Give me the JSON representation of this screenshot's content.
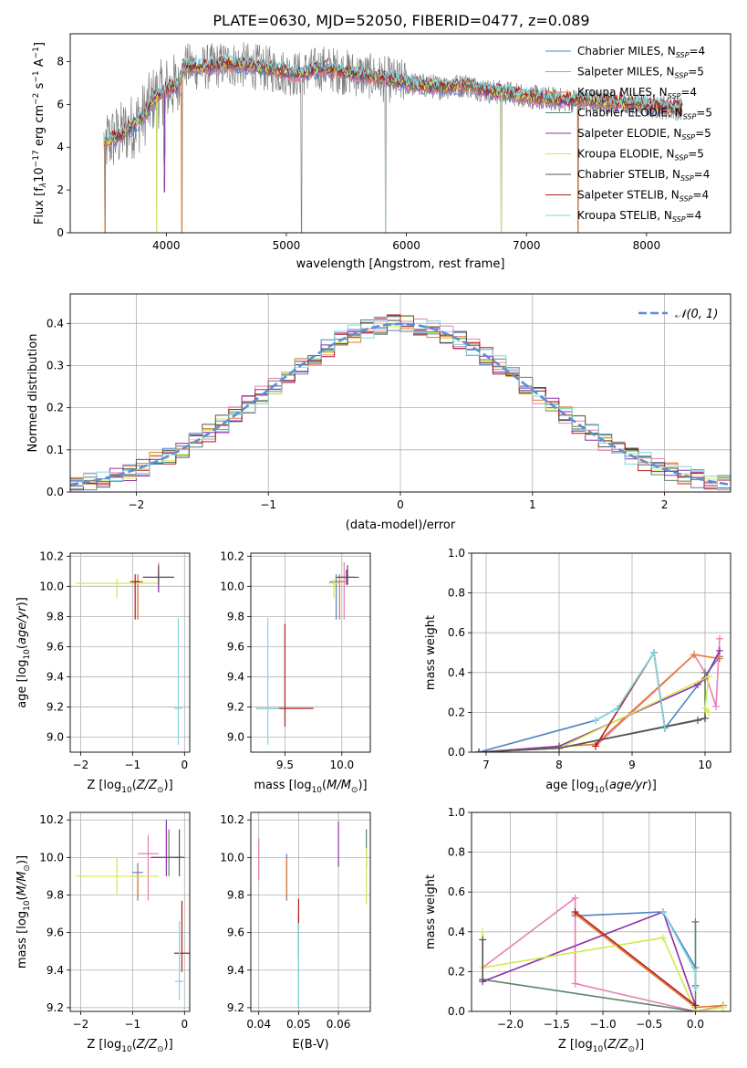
{
  "figure_title": "PLATE=0630, MJD=52050, FIBERID=0477, z=0.089",
  "colors": {
    "Chabrier MILES": "#4f83c6",
    "Salpeter MILES": "#e97fb5",
    "Kroupa MILES": "#e4792f",
    "Chabrier ELODIE": "#5e8466",
    "Salpeter ELODIE": "#8d2fa8",
    "Kroupa ELODIE": "#d2ea4c",
    "Chabrier STELIB": "#555555",
    "Salpeter STELIB": "#b01c1c",
    "Kroupa STELIB": "#7fd6df",
    "observed": "#7f7f7f",
    "gaussian": "#5b8ed6"
  },
  "chart_data": [
    {
      "id": "spectrum",
      "type": "line",
      "xlabel": "wavelength [Angstrom, rest frame]",
      "ylabel": "Flux [f_λ10^-17 erg cm^-2 s^-1 A^-1]",
      "xlim": [
        3200,
        8700
      ],
      "ylim": [
        0,
        9.3
      ],
      "xticks": [
        4000,
        5000,
        6000,
        7000,
        8000
      ],
      "yticks": [
        0,
        2,
        4,
        6,
        8
      ],
      "grid": false,
      "legend_position": "right",
      "legend": [
        {
          "name": "Chabrier MILES",
          "nssp": "4"
        },
        {
          "name": "Salpeter MILES",
          "nssp": "5"
        },
        {
          "name": "Kroupa MILES",
          "nssp": "4"
        },
        {
          "name": "Chabrier ELODIE",
          "nssp": "5"
        },
        {
          "name": "Salpeter ELODIE",
          "nssp": "5"
        },
        {
          "name": "Kroupa ELODIE",
          "nssp": "5"
        },
        {
          "name": "Chabrier STELIB",
          "nssp": "4"
        },
        {
          "name": "Salpeter STELIB",
          "nssp": "4"
        },
        {
          "name": "Kroupa STELIB",
          "nssp": "4"
        }
      ],
      "continuum_model": {
        "x": [
          3480,
          3600,
          3700,
          3800,
          3900,
          4000,
          4100,
          4150,
          4300,
          4500,
          4700,
          4900,
          5100,
          5300,
          5500,
          5700,
          5900,
          6100,
          6300,
          6500,
          6700,
          6900,
          7100,
          7300,
          7500,
          7700,
          7900,
          8100,
          8300
        ],
        "y": [
          4.2,
          4.5,
          4.9,
          5.4,
          6.3,
          6.7,
          6.9,
          7.8,
          7.7,
          7.9,
          7.8,
          7.6,
          7.4,
          7.7,
          7.5,
          7.3,
          7.1,
          6.9,
          6.8,
          6.9,
          6.6,
          6.5,
          6.3,
          6.2,
          6.2,
          6.1,
          6.0,
          5.9,
          5.8
        ]
      },
      "dips": [
        {
          "x": 3490,
          "y": 0.0
        },
        {
          "x": 3920,
          "y": 0.0
        },
        {
          "x": 3985,
          "y": 1.9
        },
        {
          "x": 4130,
          "y": 0.0
        },
        {
          "x": 5125,
          "y": 0.0
        },
        {
          "x": 5825,
          "y": 0.0
        },
        {
          "x": 6790,
          "y": 0.0
        },
        {
          "x": 7430,
          "y": 0.0
        }
      ]
    },
    {
      "id": "residuals",
      "type": "line",
      "xlabel": "(data-model)/error",
      "ylabel": "Normed distribution",
      "xlim": [
        -2.5,
        2.5
      ],
      "ylim": [
        0,
        0.47
      ],
      "xticks": [
        -2,
        -1,
        0,
        1,
        2
      ],
      "yticks": [
        0.0,
        0.1,
        0.2,
        0.3,
        0.4
      ],
      "grid": true,
      "legend_position": "top-right",
      "legend": [
        "𝒩(0, 1)"
      ],
      "gaussian": {
        "mu": 0,
        "sigma": 1
      }
    },
    {
      "id": "age_vs_Z",
      "type": "scatter",
      "xlabel": "Z [log10(Z/Z⊙)]",
      "ylabel": "age [log10(age/yr)]",
      "xlim": [
        -2.2,
        0.1
      ],
      "ylim": [
        8.9,
        10.22
      ],
      "xticks": [
        -2,
        -1,
        0
      ],
      "yticks": [
        9.0,
        9.2,
        9.4,
        9.6,
        9.8,
        10.0,
        10.2
      ],
      "grid": true,
      "points": [
        {
          "x": -0.9,
          "y": 10.03,
          "xerr": 0.1,
          "yerr": [
            0.25,
            0.05
          ],
          "series": "Chabrier MILES"
        },
        {
          "x": -0.5,
          "y": 10.06,
          "xerr": 0.25,
          "yerr": [
            0.1,
            0.1
          ],
          "series": "Salpeter MILES"
        },
        {
          "x": -0.9,
          "y": 10.03,
          "xerr": 0.1,
          "yerr": [
            0.25,
            0.05
          ],
          "series": "Kroupa MILES"
        },
        {
          "x": -0.5,
          "y": 10.06,
          "xerr": 0.3,
          "yerr": [
            0.05,
            0.05
          ],
          "series": "Chabrier ELODIE"
        },
        {
          "x": -0.5,
          "y": 10.06,
          "xerr": 0.3,
          "yerr": [
            0.1,
            0.05
          ],
          "series": "Salpeter ELODIE"
        },
        {
          "x": -1.3,
          "y": 10.02,
          "xerr": 0.8,
          "yerr": [
            0.1,
            0.03
          ],
          "series": "Kroupa ELODIE"
        },
        {
          "x": -0.5,
          "y": 10.06,
          "xerr": 0.3,
          "yerr": [
            0.05,
            0.08
          ],
          "series": "Chabrier STELIB"
        },
        {
          "x": -0.95,
          "y": 10.03,
          "xerr": 0.1,
          "yerr": [
            0.25,
            0.05
          ],
          "series": "Salpeter STELIB"
        },
        {
          "x": -0.12,
          "y": 9.19,
          "xerr": 0.08,
          "yerr": [
            0.24,
            0.6
          ],
          "series": "Kroupa STELIB"
        }
      ]
    },
    {
      "id": "age_vs_mass",
      "type": "scatter",
      "xlabel": "mass [log10(M/M⊙)]",
      "ylabel": "",
      "xlim": [
        9.2,
        10.25
      ],
      "ylim": [
        8.9,
        10.22
      ],
      "xticks": [
        9.5,
        10.0
      ],
      "yticks": [
        9.0,
        9.2,
        9.4,
        9.6,
        9.8,
        10.0,
        10.2
      ],
      "grid": true,
      "points": [
        {
          "x": 9.95,
          "y": 10.03,
          "xerr": 0.06,
          "yerr": [
            0.25,
            0.05
          ],
          "series": "Chabrier MILES"
        },
        {
          "x": 10.02,
          "y": 10.06,
          "xerr": 0.08,
          "yerr": [
            0.28,
            0.1
          ],
          "series": "Salpeter MILES"
        },
        {
          "x": 9.98,
          "y": 10.03,
          "xerr": 0.05,
          "yerr": [
            0.25,
            0.05
          ],
          "series": "Kroupa MILES"
        },
        {
          "x": 10.05,
          "y": 10.06,
          "xerr": 0.08,
          "yerr": [
            0.05,
            0.05
          ],
          "series": "Chabrier ELODIE"
        },
        {
          "x": 10.04,
          "y": 10.06,
          "xerr": 0.07,
          "yerr": [
            0.05,
            0.05
          ],
          "series": "Salpeter ELODIE"
        },
        {
          "x": 9.93,
          "y": 10.02,
          "xerr": 0.05,
          "yerr": [
            0.1,
            0.03
          ],
          "series": "Kroupa ELODIE"
        },
        {
          "x": 10.05,
          "y": 10.06,
          "xerr": 0.1,
          "yerr": [
            0.05,
            0.08
          ],
          "series": "Chabrier STELIB"
        },
        {
          "x": 9.5,
          "y": 9.19,
          "xerr": 0.25,
          "yerr": [
            0.12,
            0.56
          ],
          "series": "Salpeter STELIB"
        },
        {
          "x": 9.35,
          "y": 9.19,
          "xerr": 0.1,
          "yerr": [
            0.24,
            0.6
          ],
          "series": "Kroupa STELIB"
        }
      ]
    },
    {
      "id": "mw_vs_age",
      "type": "line",
      "xlabel": "age [log10(age/yr)]",
      "ylabel": "mass weight",
      "xlim": [
        6.8,
        10.35
      ],
      "ylim": [
        0,
        1.0
      ],
      "xticks": [
        7,
        8,
        9,
        10
      ],
      "yticks": [
        0.0,
        0.2,
        0.4,
        0.6,
        0.8,
        1.0
      ],
      "grid": true,
      "series": [
        {
          "name": "Chabrier MILES",
          "x": [
            6.9,
            8.5,
            8.8,
            9.3,
            9.45,
            10.2
          ],
          "y": [
            0.0,
            0.16,
            0.22,
            0.5,
            0.12,
            0.48
          ]
        },
        {
          "name": "Salpeter MILES",
          "x": [
            8.5,
            9.85,
            10.0,
            10.15,
            10.2
          ],
          "y": [
            0.03,
            0.49,
            0.4,
            0.23,
            0.57
          ]
        },
        {
          "name": "Kroupa MILES",
          "x": [
            6.9,
            8.5,
            9.85,
            10.2
          ],
          "y": [
            0.0,
            0.04,
            0.49,
            0.47
          ]
        },
        {
          "name": "Chabrier ELODIE",
          "x": [
            6.9,
            8.0,
            10.0,
            10.0
          ],
          "y": [
            0.0,
            0.02,
            0.17,
            0.4
          ]
        },
        {
          "name": "Salpeter ELODIE",
          "x": [
            6.9,
            8.0,
            9.9,
            10.0,
            10.2
          ],
          "y": [
            0.0,
            0.03,
            0.34,
            0.37,
            0.51
          ]
        },
        {
          "name": "Kroupa ELODIE",
          "x": [
            6.9,
            8.0,
            10.05,
            10.0,
            10.05
          ],
          "y": [
            0.0,
            0.02,
            0.38,
            0.22,
            0.2
          ]
        },
        {
          "name": "Chabrier STELIB",
          "x": [
            6.9,
            8.0,
            9.9,
            10.0
          ],
          "y": [
            0.0,
            0.02,
            0.16,
            0.17
          ]
        },
        {
          "name": "Salpeter STELIB",
          "x": [
            8.5,
            9.3,
            9.45
          ],
          "y": [
            0.03,
            0.5,
            0.12
          ]
        },
        {
          "name": "Kroupa STELIB",
          "x": [
            8.5,
            8.8,
            9.3,
            9.45
          ],
          "y": [
            0.16,
            0.22,
            0.5,
            0.12
          ]
        }
      ]
    },
    {
      "id": "mass_vs_Z",
      "type": "scatter",
      "xlabel": "Z [log10(Z/Z⊙)]",
      "ylabel": "mass [log10(M/M⊙)]",
      "xlim": [
        -2.2,
        0.1
      ],
      "ylim": [
        9.18,
        10.24
      ],
      "xticks": [
        -2,
        -1,
        0
      ],
      "yticks": [
        9.2,
        9.4,
        9.6,
        9.8,
        10.0,
        10.2
      ],
      "grid": true,
      "points": [
        {
          "x": -0.9,
          "y": 9.92,
          "xerr": 0.1,
          "yerr": [
            0.15,
            0.05
          ],
          "series": "Chabrier MILES"
        },
        {
          "x": -0.7,
          "y": 10.02,
          "xerr": 0.2,
          "yerr": [
            0.25,
            0.1
          ],
          "series": "Salpeter MILES"
        },
        {
          "x": -0.9,
          "y": 9.9,
          "xerr": 0.1,
          "yerr": [
            0.12,
            0.05
          ],
          "series": "Kroupa MILES"
        },
        {
          "x": -0.3,
          "y": 10.0,
          "xerr": 0.3,
          "yerr": [
            0.1,
            0.15
          ],
          "series": "Chabrier ELODIE"
        },
        {
          "x": -0.35,
          "y": 10.0,
          "xerr": 0.3,
          "yerr": [
            0.1,
            0.2
          ],
          "series": "Salpeter ELODIE"
        },
        {
          "x": -1.3,
          "y": 9.9,
          "xerr": 0.8,
          "yerr": [
            0.1,
            0.1
          ],
          "series": "Kroupa ELODIE"
        },
        {
          "x": -0.1,
          "y": 10.0,
          "xerr": 0.1,
          "yerr": [
            0.1,
            0.15
          ],
          "series": "Chabrier STELIB"
        },
        {
          "x": -0.05,
          "y": 9.49,
          "xerr": 0.15,
          "yerr": [
            0.1,
            0.28
          ],
          "series": "Salpeter STELIB"
        },
        {
          "x": -0.1,
          "y": 9.34,
          "xerr": 0.08,
          "yerr": [
            0.1,
            0.32
          ],
          "series": "Kroupa STELIB"
        }
      ]
    },
    {
      "id": "mass_vs_ebv",
      "type": "scatter",
      "xlabel": "E(B-V)",
      "ylabel": "",
      "xlim": [
        0.038,
        0.068
      ],
      "ylim": [
        9.18,
        10.24
      ],
      "xticks": [
        0.04,
        0.05,
        0.06
      ],
      "yticks": [
        9.2,
        9.4,
        9.6,
        9.8,
        10.0,
        10.2
      ],
      "grid": true,
      "points": [
        {
          "x": 0.047,
          "y": 9.92,
          "xerr": 0,
          "yerr": [
            0.15,
            0.1
          ],
          "series": "Chabrier MILES"
        },
        {
          "x": 0.04,
          "y": 10.0,
          "xerr": 0,
          "yerr": [
            0.12,
            0.1
          ],
          "series": "Salpeter MILES"
        },
        {
          "x": 0.047,
          "y": 9.9,
          "xerr": 0,
          "yerr": [
            0.12,
            0.1
          ],
          "series": "Kroupa MILES"
        },
        {
          "x": 0.067,
          "y": 10.05,
          "xerr": 0,
          "yerr": [
            0.1,
            0.1
          ],
          "series": "Chabrier ELODIE"
        },
        {
          "x": 0.06,
          "y": 10.07,
          "xerr": 0,
          "yerr": [
            0.12,
            0.12
          ],
          "series": "Salpeter ELODIE"
        },
        {
          "x": 0.067,
          "y": 9.95,
          "xerr": 0,
          "yerr": [
            0.2,
            0.1
          ],
          "series": "Kroupa ELODIE"
        },
        {
          "x": 0.05,
          "y": 9.6,
          "xerr": 0,
          "yerr": [
            0.4,
            0.1
          ],
          "series": "Chabrier STELIB"
        },
        {
          "x": 0.05,
          "y": 9.6,
          "xerr": 0,
          "yerr": [
            0.12,
            0.18
          ],
          "series": "Salpeter STELIB"
        },
        {
          "x": 0.05,
          "y": 9.45,
          "xerr": 0,
          "yerr": [
            0.25,
            0.2
          ],
          "series": "Kroupa STELIB"
        }
      ]
    },
    {
      "id": "mw_vs_Z",
      "type": "line",
      "xlabel": "Z [log10(Z/Z⊙)]",
      "ylabel": "mass weight",
      "xlim": [
        -2.42,
        0.38
      ],
      "ylim": [
        0,
        1.0
      ],
      "xticks": [
        -2.0,
        -1.5,
        -1.0,
        -0.5,
        0.0
      ],
      "yticks": [
        0.0,
        0.2,
        0.4,
        0.6,
        0.8,
        1.0
      ],
      "grid": true,
      "series": [
        {
          "name": "Chabrier MILES",
          "x": [
            -1.3,
            -0.35,
            0.0,
            0.0
          ],
          "y": [
            0.48,
            0.5,
            0.22,
            0.13
          ]
        },
        {
          "name": "Salpeter MILES",
          "x": [
            -2.3,
            -1.3,
            -1.3,
            0.0,
            0.3
          ],
          "y": [
            0.22,
            0.57,
            0.14,
            0.0,
            0.03
          ]
        },
        {
          "name": "Kroupa MILES",
          "x": [
            -1.3,
            0.0,
            0.3
          ],
          "y": [
            0.49,
            0.02,
            0.03
          ]
        },
        {
          "name": "Chabrier ELODIE",
          "x": [
            -2.3,
            0.0,
            0.0
          ],
          "y": [
            0.16,
            0.0,
            0.45
          ]
        },
        {
          "name": "Salpeter ELODIE",
          "x": [
            -2.3,
            -0.35,
            0.0
          ],
          "y": [
            0.15,
            0.5,
            0.03
          ]
        },
        {
          "name": "Kroupa ELODIE",
          "x": [
            -2.3,
            -2.3,
            -0.35,
            0.0,
            0.3
          ],
          "y": [
            0.4,
            0.22,
            0.37,
            0.0,
            0.02
          ]
        },
        {
          "name": "Chabrier STELIB",
          "x": [
            -2.3,
            -2.3
          ],
          "y": [
            0.36,
            0.16
          ]
        },
        {
          "name": "Salpeter STELIB",
          "x": [
            -1.3,
            0.0
          ],
          "y": [
            0.5,
            0.03
          ]
        },
        {
          "name": "Kroupa STELIB",
          "x": [
            -0.35,
            0.0,
            0.0
          ],
          "y": [
            0.5,
            0.2,
            0.12
          ]
        }
      ]
    }
  ]
}
